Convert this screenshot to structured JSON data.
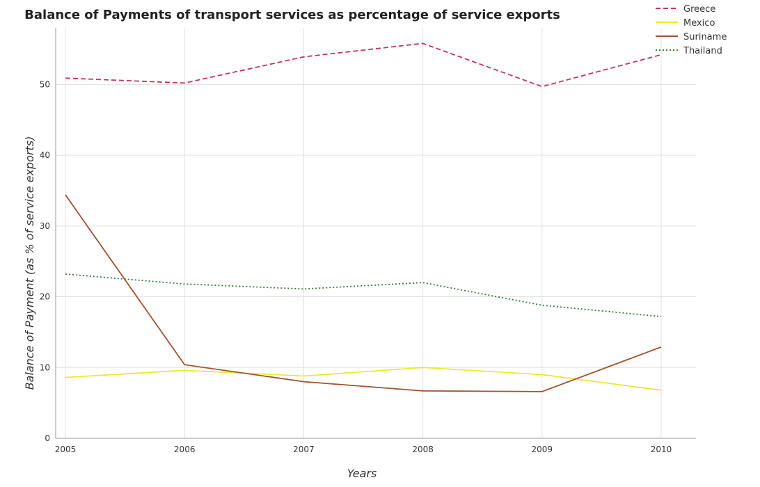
{
  "chart_data": {
    "type": "line",
    "title": "Balance of Payments of transport services as percentage of service exports",
    "xlabel": "Years",
    "ylabel": "Balance of Payment (as % of service exports)",
    "categories": [
      "2005",
      "2006",
      "2007",
      "2008",
      "2009",
      "2010"
    ],
    "ylim": [
      0,
      58
    ],
    "yticks": [
      0,
      10,
      20,
      30,
      40,
      50
    ],
    "grid": true,
    "legend_position": "top-right",
    "series": [
      {
        "name": "Greece",
        "color": "#c0365a",
        "dash": "7,4",
        "values": [
          50.9,
          50.2,
          53.9,
          55.8,
          49.7,
          54.2
        ]
      },
      {
        "name": "Mexico",
        "color": "#f2e533",
        "dash": "",
        "values": [
          8.6,
          9.6,
          8.8,
          10.0,
          9.0,
          6.8
        ]
      },
      {
        "name": "Suriname",
        "color": "#a0522d",
        "dash": "",
        "values": [
          34.4,
          10.4,
          8.0,
          6.7,
          6.6,
          12.9
        ]
      },
      {
        "name": "Thailand",
        "color": "#2e7d32",
        "dash": "2,3",
        "values": [
          23.2,
          21.8,
          21.1,
          22.0,
          18.8,
          17.2
        ]
      }
    ]
  }
}
